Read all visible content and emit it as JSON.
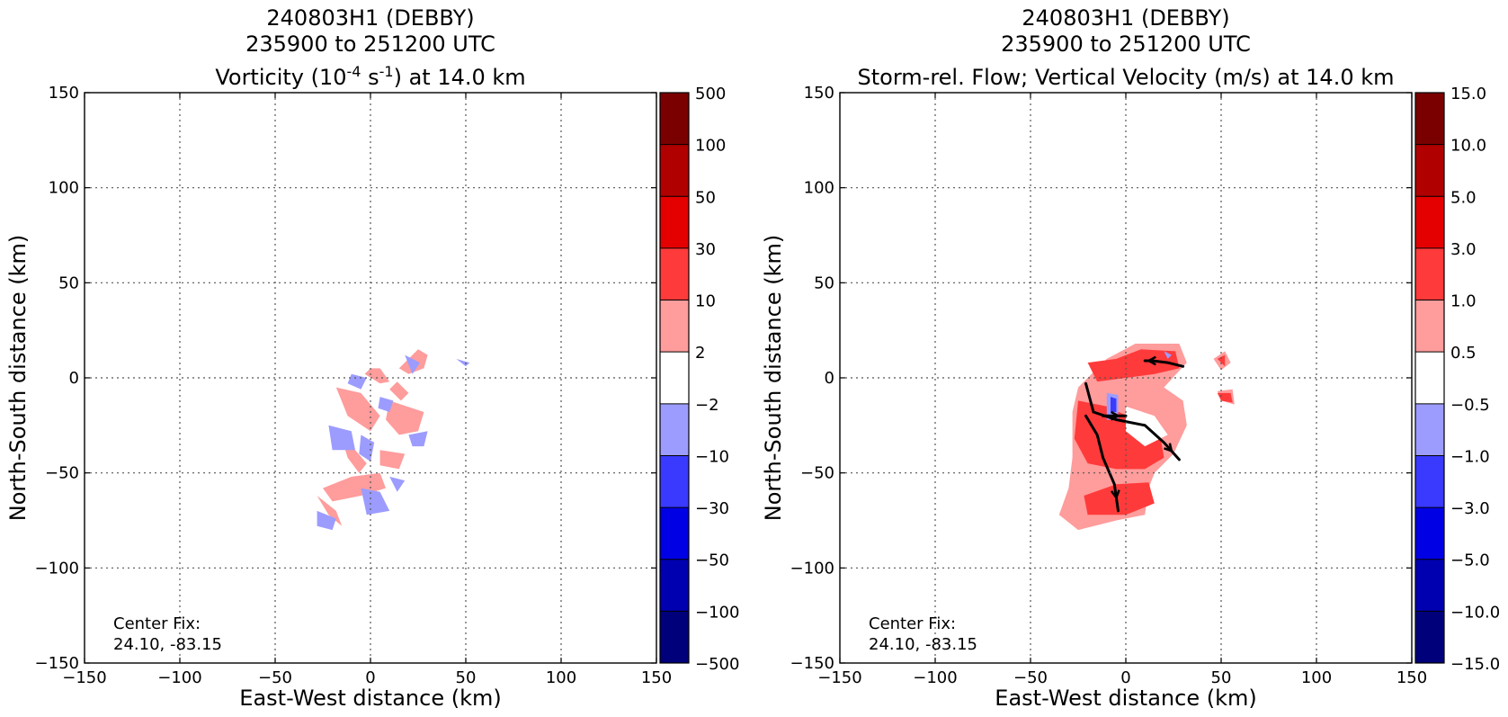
{
  "chart_data": [
    {
      "type": "heatmap",
      "title": [
        "240803H1 (DEBBY)",
        "235900 to 251200 UTC"
      ],
      "subtitle": {
        "pre": "Vorticity (10",
        "sup1": "-4",
        "mid": " s",
        "sup2": "-1",
        "post": ") at 14.0 km"
      },
      "xlabel": "East-West distance (km)",
      "ylabel": "North-South distance (km)",
      "xlim": [
        -150,
        150
      ],
      "ylim": [
        -150,
        150
      ],
      "xticks": [
        "−150",
        "−100",
        "−50",
        "0",
        "50",
        "100",
        "150"
      ],
      "yticks": [
        "150",
        "100",
        "50",
        "0",
        "−50",
        "−100",
        "−150"
      ],
      "grid": true,
      "annotation": [
        "Center Fix:",
        "24.10, -83.15"
      ],
      "colorbar": {
        "labels": [
          "500",
          "100",
          "50",
          "30",
          "10",
          "2",
          "−2",
          "−10",
          "−30",
          "−50",
          "−100",
          "−500"
        ],
        "colors": [
          "#7a0000",
          "#b00000",
          "#e40000",
          "#ff3a3a",
          "#ff9c9c",
          "#ffffff",
          "#9c9cff",
          "#3a3aff",
          "#0000e4",
          "#0000b0",
          "#00007a"
        ]
      },
      "regions": [
        {
          "level": "2 to 10",
          "color": "#ff9c9c",
          "points": [
            [
              15,
              5
            ],
            [
              25,
              15
            ],
            [
              30,
              12
            ],
            [
              28,
              5
            ],
            [
              20,
              2
            ]
          ]
        },
        {
          "level": "2 to 10",
          "color": "#ff9c9c",
          "points": [
            [
              -18,
              -5
            ],
            [
              -5,
              -8
            ],
            [
              5,
              -20
            ],
            [
              0,
              -28
            ],
            [
              -12,
              -20
            ]
          ]
        },
        {
          "level": "2 to 10",
          "color": "#ff9c9c",
          "points": [
            [
              10,
              -12
            ],
            [
              28,
              -18
            ],
            [
              25,
              -28
            ],
            [
              15,
              -30
            ],
            [
              8,
              -22
            ]
          ]
        },
        {
          "level": "2 to 10",
          "color": "#ff9c9c",
          "points": [
            [
              -15,
              -32
            ],
            [
              -8,
              -38
            ],
            [
              -2,
              -45
            ],
            [
              -6,
              -50
            ],
            [
              -12,
              -42
            ]
          ]
        },
        {
          "level": "2 to 10",
          "color": "#ff9c9c",
          "points": [
            [
              -25,
              -58
            ],
            [
              -10,
              -52
            ],
            [
              5,
              -50
            ],
            [
              8,
              -58
            ],
            [
              -5,
              -62
            ],
            [
              -20,
              -65
            ]
          ]
        },
        {
          "level": "2 to 10",
          "color": "#ff9c9c",
          "points": [
            [
              5,
              -38
            ],
            [
              18,
              -40
            ],
            [
              15,
              -48
            ],
            [
              5,
              -46
            ]
          ]
        },
        {
          "level": "2 to 10",
          "color": "#ff9c9c",
          "points": [
            [
              -3,
              2
            ],
            [
              5,
              -3
            ],
            [
              10,
              -2
            ],
            [
              5,
              5
            ],
            [
              0,
              5
            ]
          ]
        },
        {
          "level": "2 to 10",
          "color": "#ff9c9c",
          "points": [
            [
              -28,
              -62
            ],
            [
              -22,
              -72
            ],
            [
              -15,
              -78
            ],
            [
              -18,
              -70
            ]
          ]
        },
        {
          "level": "2 to 10",
          "color": "#ff9c9c",
          "points": [
            [
              14,
              -2
            ],
            [
              20,
              -8
            ],
            [
              16,
              -12
            ],
            [
              10,
              -6
            ]
          ]
        },
        {
          "level": "-10 to -2",
          "color": "#9c9cff",
          "points": [
            [
              -22,
              -25
            ],
            [
              -10,
              -28
            ],
            [
              -8,
              -38
            ],
            [
              -20,
              -38
            ]
          ]
        },
        {
          "level": "-10 to -2",
          "color": "#9c9cff",
          "points": [
            [
              -5,
              -30
            ],
            [
              2,
              -34
            ],
            [
              0,
              -44
            ],
            [
              -6,
              -40
            ]
          ]
        },
        {
          "level": "-10 to -2",
          "color": "#9c9cff",
          "points": [
            [
              -10,
              2
            ],
            [
              -2,
              0
            ],
            [
              -5,
              -6
            ],
            [
              -12,
              -3
            ]
          ]
        },
        {
          "level": "-10 to -2",
          "color": "#9c9cff",
          "points": [
            [
              18,
              12
            ],
            [
              26,
              8
            ],
            [
              22,
              2
            ]
          ]
        },
        {
          "level": "-10 to -2",
          "color": "#9c9cff",
          "points": [
            [
              -5,
              -58
            ],
            [
              5,
              -60
            ],
            [
              10,
              -70
            ],
            [
              -2,
              -72
            ]
          ]
        },
        {
          "level": "-10 to -2",
          "color": "#9c9cff",
          "points": [
            [
              -28,
              -70
            ],
            [
              -18,
              -74
            ],
            [
              -20,
              -80
            ],
            [
              -28,
              -78
            ]
          ]
        },
        {
          "level": "-10 to -2",
          "color": "#9c9cff",
          "points": [
            [
              20,
              -30
            ],
            [
              30,
              -28
            ],
            [
              28,
              -36
            ],
            [
              22,
              -36
            ]
          ]
        },
        {
          "level": "-10 to -2",
          "color": "#9c9cff",
          "points": [
            [
              5,
              -10
            ],
            [
              12,
              -12
            ],
            [
              10,
              -18
            ],
            [
              4,
              -16
            ]
          ]
        },
        {
          "level": "-10 to -2",
          "color": "#9c9cff",
          "points": [
            [
              45,
              10
            ],
            [
              52,
              8
            ],
            [
              50,
              6
            ]
          ]
        },
        {
          "level": "-10 to -2",
          "color": "#9c9cff",
          "points": [
            [
              10,
              -52
            ],
            [
              18,
              -54
            ],
            [
              14,
              -60
            ]
          ]
        }
      ],
      "streamlines": []
    },
    {
      "type": "heatmap",
      "title": [
        "240803H1 (DEBBY)",
        "235900 to 251200 UTC"
      ],
      "subtitle": {
        "pre": "Storm-rel. Flow; Vertical Velocity (m/s) at 14.0 km",
        "sup1": "",
        "mid": "",
        "sup2": "",
        "post": ""
      },
      "xlabel": "East-West distance (km)",
      "ylabel": "North-South distance (km)",
      "xlim": [
        -150,
        150
      ],
      "ylim": [
        -150,
        150
      ],
      "xticks": [
        "−150",
        "−100",
        "−50",
        "0",
        "50",
        "100",
        "150"
      ],
      "yticks": [
        "150",
        "100",
        "50",
        "0",
        "−50",
        "−100",
        "−150"
      ],
      "grid": true,
      "annotation": [
        "Center Fix:",
        "24.10, -83.15"
      ],
      "colorbar": {
        "labels": [
          "15.0",
          "10.0",
          "5.0",
          "3.0",
          "1.0",
          "0.5",
          "−0.5",
          "−1.0",
          "−3.0",
          "−5.0",
          "−10.0",
          "−15.0"
        ],
        "colors": [
          "#7a0000",
          "#b00000",
          "#e40000",
          "#ff3a3a",
          "#ff9c9c",
          "#ffffff",
          "#9c9cff",
          "#3a3aff",
          "#0000e4",
          "#0000b0",
          "#00007a"
        ]
      },
      "regions": [
        {
          "level": "0.5 to 1.0",
          "color": "#ff9c9c",
          "points": [
            [
              -25,
              -5
            ],
            [
              -10,
              10
            ],
            [
              5,
              18
            ],
            [
              28,
              18
            ],
            [
              32,
              8
            ],
            [
              20,
              -5
            ],
            [
              30,
              -12
            ],
            [
              32,
              -25
            ],
            [
              25,
              -40
            ],
            [
              15,
              -50
            ],
            [
              12,
              -58
            ],
            [
              10,
              -72
            ],
            [
              -5,
              -75
            ],
            [
              -25,
              -80
            ],
            [
              -35,
              -72
            ],
            [
              -30,
              -58
            ],
            [
              -28,
              -42
            ],
            [
              -28,
              -18
            ]
          ]
        },
        {
          "level": "0.5 to 1.0",
          "color": "#ff9c9c",
          "points": [
            [
              46,
              10
            ],
            [
              52,
              14
            ],
            [
              55,
              8
            ],
            [
              50,
              4
            ]
          ]
        },
        {
          "level": "0.5 to 1.0",
          "color": "#ff9c9c",
          "points": [
            [
              48,
              -7
            ],
            [
              56,
              -6
            ],
            [
              57,
              -14
            ],
            [
              50,
              -12
            ]
          ]
        },
        {
          "level": "1.0 to 3.0",
          "color": "#ff3a3a",
          "points": [
            [
              -20,
              8
            ],
            [
              -5,
              10
            ],
            [
              8,
              15
            ],
            [
              26,
              14
            ],
            [
              28,
              5
            ],
            [
              15,
              2
            ],
            [
              0,
              0
            ],
            [
              -15,
              -2
            ]
          ]
        },
        {
          "level": "1.0 to 3.0",
          "color": "#ff3a3a",
          "points": [
            [
              -25,
              -12
            ],
            [
              -10,
              -15
            ],
            [
              5,
              -22
            ],
            [
              18,
              -30
            ],
            [
              20,
              -42
            ],
            [
              10,
              -48
            ],
            [
              -5,
              -48
            ],
            [
              -20,
              -45
            ],
            [
              -27,
              -32
            ]
          ]
        },
        {
          "level": "1.0 to 3.0",
          "color": "#ff3a3a",
          "points": [
            [
              -22,
              -62
            ],
            [
              -5,
              -56
            ],
            [
              12,
              -55
            ],
            [
              15,
              -66
            ],
            [
              0,
              -72
            ],
            [
              -20,
              -72
            ]
          ]
        },
        {
          "level": "1.0 to 3.0",
          "color": "#ff3a3a",
          "points": [
            [
              48,
              -8
            ],
            [
              55,
              -8
            ],
            [
              56,
              -13
            ],
            [
              50,
              -12
            ]
          ]
        },
        {
          "level": "1.0 to 3.0",
          "color": "#ff3a3a",
          "points": [
            [
              48,
              10
            ],
            [
              52,
              12
            ],
            [
              52,
              6
            ]
          ]
        },
        {
          "level": "-0.5 to 0.5",
          "color": "#ffffff",
          "points": [
            [
              0,
              -15
            ],
            [
              15,
              -20
            ],
            [
              22,
              -30
            ],
            [
              10,
              -36
            ],
            [
              0,
              -28
            ]
          ]
        },
        {
          "level": "-1.0 to -0.5",
          "color": "#9c9cff",
          "points": [
            [
              -10,
              -8
            ],
            [
              -4,
              -9
            ],
            [
              -4,
              -22
            ],
            [
              -10,
              -22
            ]
          ]
        },
        {
          "level": "-3.0 to -1.0",
          "color": "#3a3aff",
          "points": [
            [
              -8,
              -10
            ],
            [
              -5,
              -11
            ],
            [
              -5,
              -18
            ],
            [
              -8,
              -18
            ]
          ]
        },
        {
          "level": "-1.0 to -0.5",
          "color": "#9c9cff",
          "points": [
            [
              20,
              14
            ],
            [
              24,
              12
            ],
            [
              22,
              10
            ]
          ]
        }
      ],
      "streamlines": [
        [
          [
            -21,
            -3
          ],
          [
            -17,
            -18
          ],
          [
            -5,
            -22
          ],
          [
            10,
            -25
          ],
          [
            20,
            -34
          ],
          [
            28,
            -43
          ]
        ],
        [
          [
            -21,
            -20
          ],
          [
            -15,
            -30
          ],
          [
            -12,
            -42
          ],
          [
            -6,
            -56
          ],
          [
            -4,
            -70
          ]
        ],
        [
          [
            30,
            6
          ],
          [
            22,
            8
          ],
          [
            14,
            9
          ],
          [
            10,
            9
          ]
        ],
        [
          [
            -12,
            -20
          ],
          [
            -8,
            -20
          ],
          [
            0,
            -20
          ]
        ]
      ]
    }
  ]
}
